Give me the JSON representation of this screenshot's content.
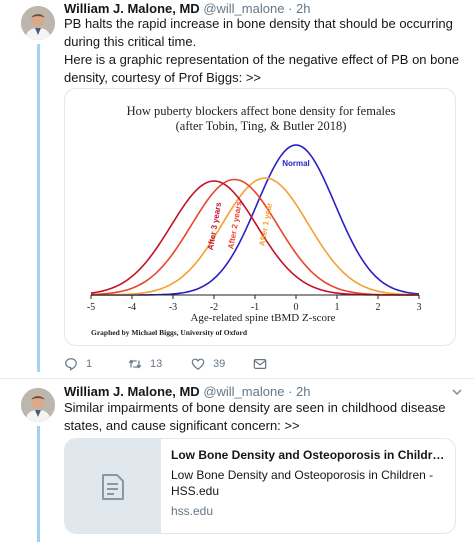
{
  "colors": {
    "thread_line": "#9fd3f0",
    "curve_normal": "#2a1fc4",
    "curve_after_1_year": "#f5a030",
    "curve_after_2_years": "#e8452c",
    "curve_after_3_years": "#c4122a"
  },
  "tweet1": {
    "name": "William J. Malone, MD",
    "handle": "@will_malone",
    "time": "· 2h",
    "text_line1": "PB halts the rapid increase in bone density that should be occurring during this critical time.",
    "text_line2": "Here is a graphic representation of the negative effect of PB on bone density, courtesy of Prof Biggs: >>",
    "replies": "1",
    "retweets": "13",
    "likes": "39"
  },
  "chart_data": {
    "type": "line",
    "title": "How puberty blockers affect bone density for females",
    "subtitle": "(after Tobin, Ting, & Butler 2018)",
    "xlabel": "Age-related spine tBMD Z-score",
    "ylabel": "",
    "xlim": [
      -5,
      3
    ],
    "ylim": [
      0,
      1
    ],
    "x_ticks": [
      "-5",
      "-4",
      "-3",
      "-2",
      "-1",
      "0",
      "1",
      "2",
      "3"
    ],
    "credit": "Graphed by Michael Biggs, University of Oxford",
    "series": [
      {
        "name": "Normal",
        "mean": 0.0,
        "sd": 0.95,
        "peak": 1.0
      },
      {
        "name": "After 1 year",
        "mean": -0.75,
        "sd": 1.05,
        "peak": 0.78
      },
      {
        "name": "After 2 years",
        "mean": -1.5,
        "sd": 1.05,
        "peak": 0.77
      },
      {
        "name": "After 3 years",
        "mean": -2.0,
        "sd": 1.05,
        "peak": 0.76
      }
    ]
  },
  "tweet2": {
    "name": "William J. Malone, MD",
    "handle": "@will_malone",
    "time": "· 2h",
    "text": "Similar impairments of bone density are seen in childhood disease states, and cause significant concern: >>",
    "card": {
      "title": "Low Bone Density and Osteoporosis in Children - ...",
      "description": "Low Bone Density and Osteoporosis in Children - HSS.edu",
      "domain": "hss.edu"
    }
  }
}
